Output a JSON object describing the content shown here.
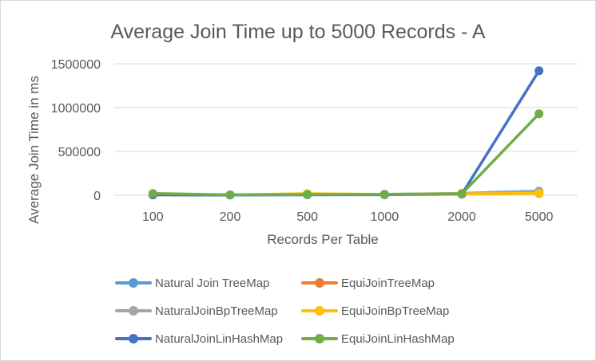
{
  "chart_data": {
    "type": "line",
    "title": "Average Join Time up to 5000 Records - A",
    "xlabel": "Records Per Table",
    "ylabel": "Average Join Time in ms",
    "categories": [
      "100",
      "200",
      "500",
      "1000",
      "2000",
      "5000"
    ],
    "yticks": [
      "0",
      "500000",
      "1000000",
      "1500000"
    ],
    "ylim": [
      0,
      1500000
    ],
    "grid": true,
    "legend_position": "bottom",
    "series": [
      {
        "name": "Natural Join TreeMap",
        "color": "#5b9bd5",
        "values": [
          8000,
          4000,
          9000,
          11000,
          22000,
          47000
        ]
      },
      {
        "name": "EquiJoinTreeMap",
        "color": "#ed7d31",
        "values": [
          6000,
          3000,
          14000,
          8000,
          15000,
          20000
        ]
      },
      {
        "name": "NaturalJoinBpTreeMap",
        "color": "#a5a5a5",
        "values": [
          7000,
          5000,
          11000,
          9000,
          20000,
          40000
        ]
      },
      {
        "name": "EquiJoinBpTreeMap",
        "color": "#ffc000",
        "values": [
          5000,
          4000,
          18000,
          10000,
          16000,
          22000
        ]
      },
      {
        "name": "NaturalJoinLinHashMap",
        "color": "#4472c4",
        "values": [
          4000,
          2000,
          5000,
          6000,
          12000,
          1420000
        ]
      },
      {
        "name": "EquiJoinLinHashMap",
        "color": "#70ad47",
        "values": [
          20000,
          5000,
          8000,
          10000,
          15000,
          930000
        ]
      }
    ]
  }
}
